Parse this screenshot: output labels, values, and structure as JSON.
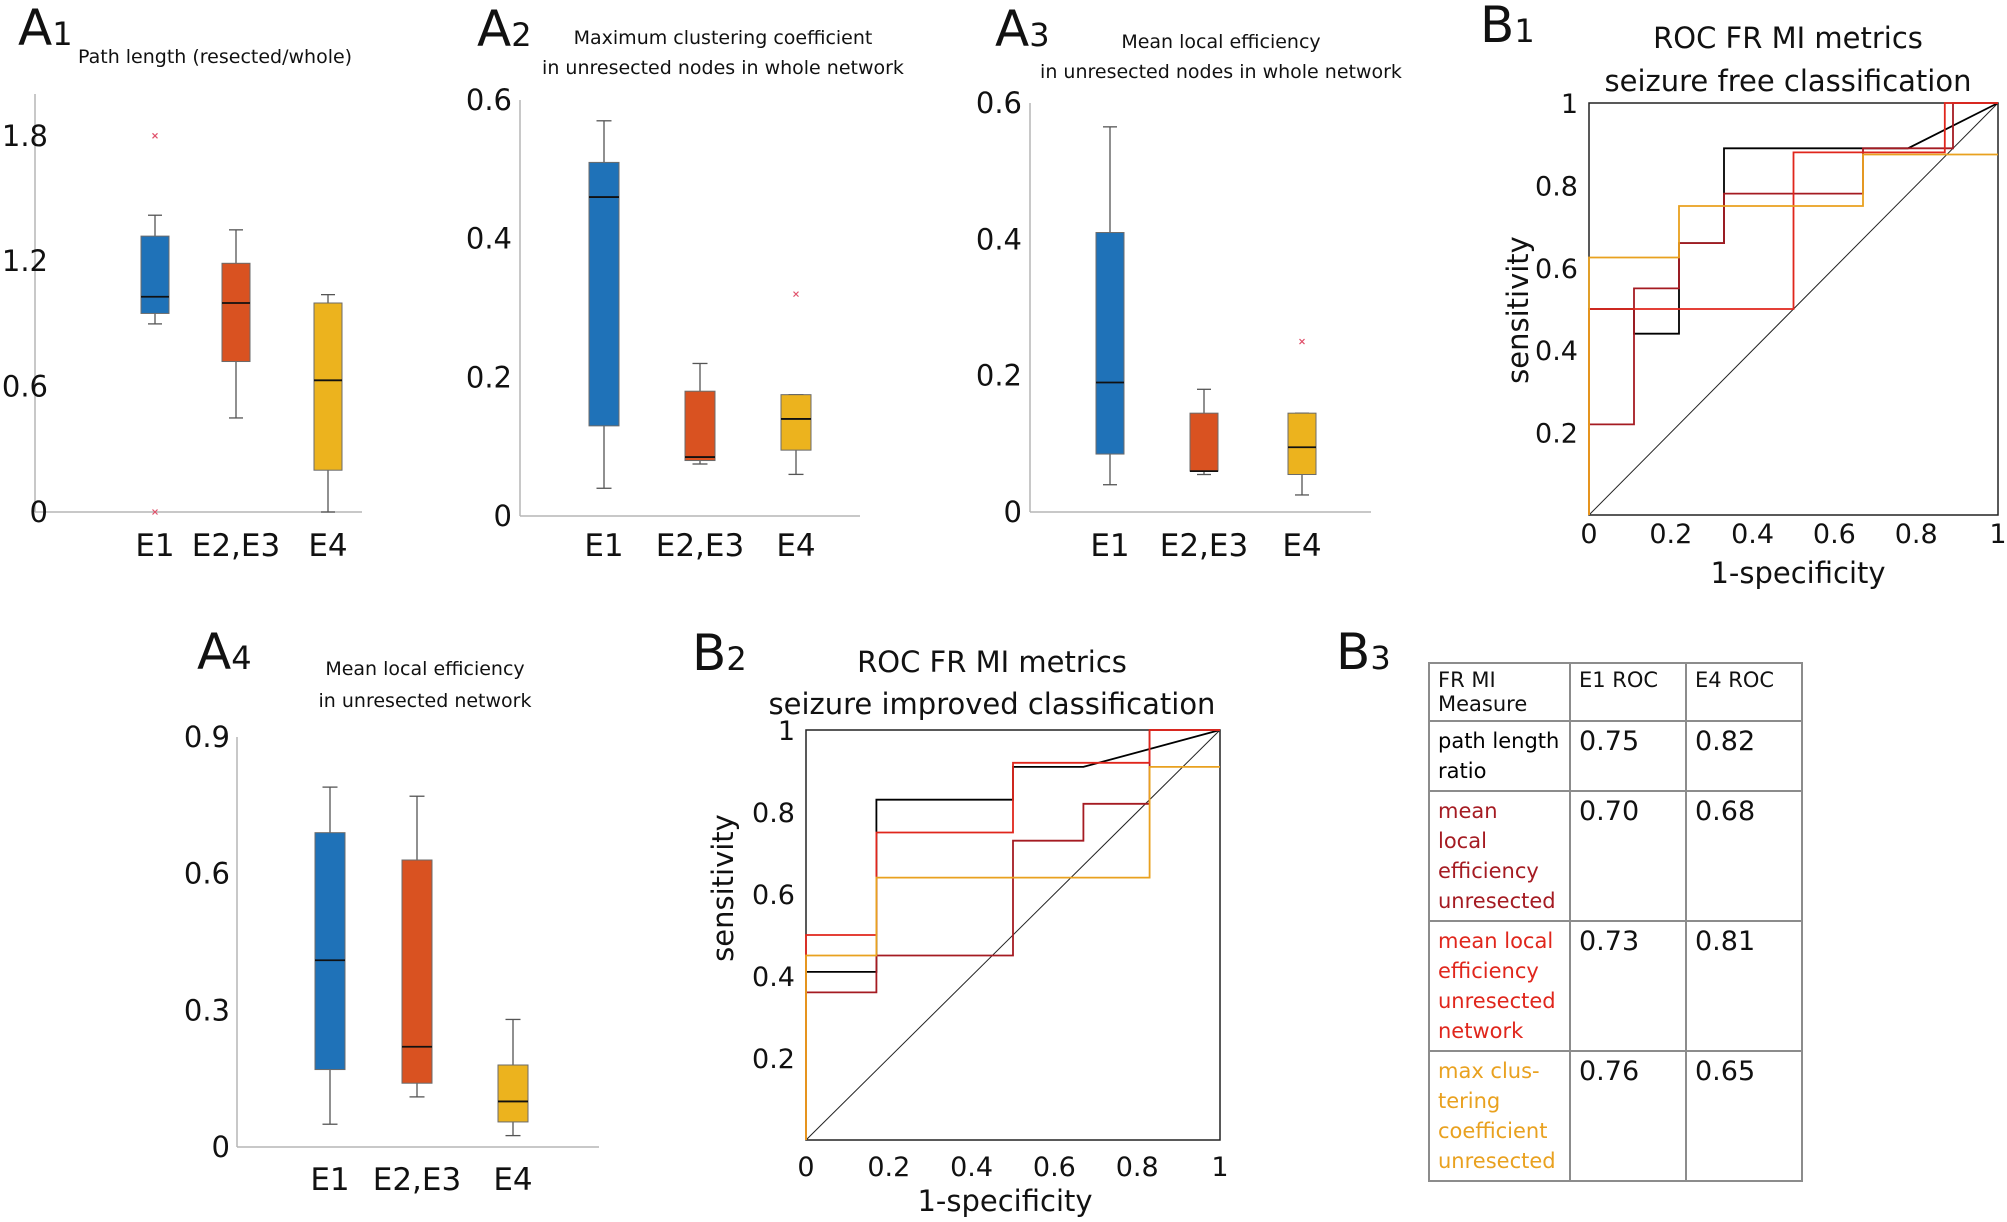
{
  "colors": {
    "E1": "#1f72b8",
    "E2E3": "#d95221",
    "E4": "#ecb31e",
    "outlier": "#e0506a",
    "roc_black": "#000000",
    "roc_darkred": "#a51b22",
    "roc_red": "#e0261c",
    "roc_orange": "#e9a11f"
  },
  "chart_data": [
    {
      "id": "A1",
      "panel_letter": "A",
      "panel_sub": "1",
      "type": "box",
      "title_lines": [
        "Path length (resected/whole)"
      ],
      "categories": [
        "E1",
        "E2,E3",
        "E4"
      ],
      "ylim": [
        0,
        2.0
      ],
      "yticks": [
        0,
        0.6,
        1.2,
        1.8
      ],
      "ytick_labels": [
        "0",
        "0.6",
        "1.2",
        "1.8"
      ],
      "boxes": [
        {
          "whislo": 0.9,
          "q1": 0.95,
          "med": 1.03,
          "q3": 1.32,
          "whishi": 1.42,
          "outliers": [
            1.8,
            0.0
          ],
          "color": "E1"
        },
        {
          "whislo": 0.45,
          "q1": 0.72,
          "med": 1.0,
          "q3": 1.19,
          "whishi": 1.35,
          "outliers": [],
          "color": "E2E3"
        },
        {
          "whislo": 0.0,
          "q1": 0.2,
          "med": 0.63,
          "q3": 1.0,
          "whishi": 1.04,
          "outliers": [],
          "color": "E4"
        }
      ]
    },
    {
      "id": "A2",
      "panel_letter": "A",
      "panel_sub": "2",
      "type": "box",
      "title_lines": [
        "Maximum clustering coefficient",
        "in unresected nodes in whole network"
      ],
      "categories": [
        "E1",
        "E2,E3",
        "E4"
      ],
      "ylim": [
        0,
        0.6
      ],
      "yticks": [
        0,
        0.2,
        0.4,
        0.6
      ],
      "ytick_labels": [
        "0",
        "0.2",
        "0.4",
        "0.6"
      ],
      "boxes": [
        {
          "whislo": 0.04,
          "q1": 0.13,
          "med": 0.46,
          "q3": 0.51,
          "whishi": 0.57,
          "outliers": [],
          "color": "E1"
        },
        {
          "whislo": 0.075,
          "q1": 0.08,
          "med": 0.085,
          "q3": 0.18,
          "whishi": 0.22,
          "outliers": [],
          "color": "E2E3"
        },
        {
          "whislo": 0.06,
          "q1": 0.095,
          "med": 0.14,
          "q3": 0.175,
          "whishi": 0.175,
          "outliers": [
            0.32
          ],
          "color": "E4"
        }
      ]
    },
    {
      "id": "A3",
      "panel_letter": "A",
      "panel_sub": "3",
      "type": "box",
      "title_lines": [
        "Mean local efficiency",
        "in unresected nodes in whole network"
      ],
      "categories": [
        "E1",
        "E2,E3",
        "E4"
      ],
      "ylim": [
        0,
        0.6
      ],
      "yticks": [
        0,
        0.2,
        0.4,
        0.6
      ],
      "ytick_labels": [
        "0",
        "0.2",
        "0.4",
        "0.6"
      ],
      "boxes": [
        {
          "whislo": 0.04,
          "q1": 0.085,
          "med": 0.19,
          "q3": 0.41,
          "whishi": 0.565,
          "outliers": [],
          "color": "E1"
        },
        {
          "whislo": 0.055,
          "q1": 0.06,
          "med": 0.06,
          "q3": 0.145,
          "whishi": 0.18,
          "outliers": [],
          "color": "E2E3"
        },
        {
          "whislo": 0.025,
          "q1": 0.055,
          "med": 0.095,
          "q3": 0.145,
          "whishi": 0.145,
          "outliers": [
            0.25
          ],
          "color": "E4"
        }
      ]
    },
    {
      "id": "A4",
      "panel_letter": "A",
      "panel_sub": "4",
      "type": "box",
      "title_lines": [
        "Mean local efficiency",
        "in unresected network"
      ],
      "categories": [
        "E1",
        "E2,E3",
        "E4"
      ],
      "ylim": [
        0,
        0.9
      ],
      "yticks": [
        0,
        0.3,
        0.6,
        0.9
      ],
      "ytick_labels": [
        "0",
        "0.3",
        "0.6",
        "0.9"
      ],
      "boxes": [
        {
          "whislo": 0.05,
          "q1": 0.17,
          "med": 0.41,
          "q3": 0.69,
          "whishi": 0.79,
          "outliers": [],
          "color": "E1"
        },
        {
          "whislo": 0.11,
          "q1": 0.14,
          "med": 0.22,
          "q3": 0.63,
          "whishi": 0.77,
          "outliers": [],
          "color": "E2E3"
        },
        {
          "whislo": 0.025,
          "q1": 0.055,
          "med": 0.1,
          "q3": 0.18,
          "whishi": 0.28,
          "outliers": [],
          "color": "E4"
        }
      ]
    },
    {
      "id": "B1",
      "panel_letter": "B",
      "panel_sub": "1",
      "type": "roc",
      "title_lines": [
        "ROC FR MI metrics",
        "seizure free classification"
      ],
      "xlabel": "1-specificity",
      "ylabel": "sensitivity",
      "xlim": [
        0,
        1
      ],
      "ylim": [
        0,
        1
      ],
      "xticks": [
        0,
        0.2,
        0.4,
        0.6,
        0.8,
        1
      ],
      "xtick_labels": [
        "0",
        "0.2",
        "0.4",
        "0.6",
        "0.8",
        "1"
      ],
      "yticks": [
        0.2,
        0.4,
        0.6,
        0.8,
        1
      ],
      "ytick_labels": [
        "0.2",
        "0.4",
        "0.6",
        "0.8",
        "1"
      ],
      "series": [
        {
          "name": "path length ratio",
          "color": "roc_black",
          "points": [
            [
              0,
              0
            ],
            [
              0,
              0.5
            ],
            [
              0.11,
              0.5
            ],
            [
              0.11,
              0.44
            ],
            [
              0.22,
              0.44
            ],
            [
              0.22,
              0.66
            ],
            [
              0.33,
              0.66
            ],
            [
              0.33,
              0.89
            ],
            [
              0.78,
              0.89
            ],
            [
              1,
              1
            ]
          ]
        },
        {
          "name": "mean local efficiency unresected",
          "color": "roc_darkred",
          "points": [
            [
              0,
              0
            ],
            [
              0,
              0.22
            ],
            [
              0.11,
              0.22
            ],
            [
              0.11,
              0.55
            ],
            [
              0.22,
              0.55
            ],
            [
              0.22,
              0.66
            ],
            [
              0.33,
              0.66
            ],
            [
              0.33,
              0.78
            ],
            [
              0.67,
              0.78
            ],
            [
              0.67,
              0.89
            ],
            [
              0.89,
              0.89
            ],
            [
              0.89,
              1
            ],
            [
              1,
              1
            ]
          ]
        },
        {
          "name": "mean local efficiency unresected network",
          "color": "roc_red",
          "points": [
            [
              0,
              0
            ],
            [
              0,
              0.5
            ],
            [
              0.5,
              0.5
            ],
            [
              0.5,
              0.88
            ],
            [
              0.87,
              0.88
            ],
            [
              0.87,
              1
            ],
            [
              1,
              1
            ]
          ]
        },
        {
          "name": "max clustering coefficient unresected",
          "color": "roc_orange",
          "points": [
            [
              0,
              0
            ],
            [
              0,
              0.625
            ],
            [
              0.22,
              0.625
            ],
            [
              0.22,
              0.75
            ],
            [
              0.67,
              0.75
            ],
            [
              0.67,
              0.875
            ],
            [
              1,
              0.875
            ]
          ]
        }
      ]
    },
    {
      "id": "B2",
      "panel_letter": "B",
      "panel_sub": "2",
      "type": "roc",
      "title_lines": [
        "ROC FR MI metrics",
        "seizure improved classification"
      ],
      "xlabel": "1-specificity",
      "ylabel": "sensitivity",
      "xlim": [
        0,
        1
      ],
      "ylim": [
        0,
        1
      ],
      "xticks": [
        0,
        0.2,
        0.4,
        0.6,
        0.8,
        1
      ],
      "xtick_labels": [
        "0",
        "0.2",
        "0.4",
        "0.6",
        "0.8",
        "1"
      ],
      "yticks": [
        0.2,
        0.4,
        0.6,
        0.8,
        1
      ],
      "ytick_labels": [
        "0.2",
        "0.4",
        "0.6",
        "0.8",
        "1"
      ],
      "series": [
        {
          "name": "path length ratio",
          "color": "roc_black",
          "points": [
            [
              0,
              0
            ],
            [
              0,
              0.41
            ],
            [
              0.17,
              0.41
            ],
            [
              0.17,
              0.83
            ],
            [
              0.5,
              0.83
            ],
            [
              0.5,
              0.91
            ],
            [
              0.67,
              0.91
            ],
            [
              1,
              1
            ]
          ]
        },
        {
          "name": "mean local efficiency unresected",
          "color": "roc_darkred",
          "points": [
            [
              0,
              0
            ],
            [
              0,
              0.36
            ],
            [
              0.17,
              0.36
            ],
            [
              0.17,
              0.45
            ],
            [
              0.5,
              0.45
            ],
            [
              0.5,
              0.73
            ],
            [
              0.67,
              0.73
            ],
            [
              0.67,
              0.82
            ],
            [
              0.83,
              0.82
            ],
            [
              0.83,
              1
            ],
            [
              1,
              1
            ]
          ]
        },
        {
          "name": "mean local efficiency unresected network",
          "color": "roc_red",
          "points": [
            [
              0,
              0
            ],
            [
              0,
              0.5
            ],
            [
              0.17,
              0.5
            ],
            [
              0.17,
              0.75
            ],
            [
              0.5,
              0.75
            ],
            [
              0.5,
              0.92
            ],
            [
              0.83,
              0.92
            ],
            [
              0.83,
              1
            ],
            [
              1,
              1
            ]
          ]
        },
        {
          "name": "max clustering coefficient unresected",
          "color": "roc_orange",
          "points": [
            [
              0,
              0
            ],
            [
              0,
              0.45
            ],
            [
              0.17,
              0.45
            ],
            [
              0.17,
              0.64
            ],
            [
              0.83,
              0.64
            ],
            [
              0.83,
              0.91
            ],
            [
              1,
              0.91
            ]
          ]
        }
      ]
    },
    {
      "id": "B3",
      "panel_letter": "B",
      "panel_sub": "3",
      "type": "table",
      "headers": [
        "FR MI Measure",
        "E1 ROC",
        "E4 ROC"
      ],
      "header_lines": [
        "FR MI",
        "Measure"
      ],
      "rows": [
        {
          "measure_lines": [
            "path length",
            "ratio"
          ],
          "color": "roc_black",
          "e1": "0.75",
          "e4": "0.82"
        },
        {
          "measure_lines": [
            "mean",
            "local",
            "efficiency",
            "unresected"
          ],
          "color": "roc_darkred",
          "e1": "0.70",
          "e4": "0.68"
        },
        {
          "measure_lines": [
            "mean local",
            "efficiency",
            "unresected",
            "network"
          ],
          "color": "roc_red",
          "e1": "0.73",
          "e4": "0.81"
        },
        {
          "measure_lines": [
            "max clus-",
            "tering",
            "coefficient",
            "unresected"
          ],
          "color": "roc_orange",
          "e1": "0.76",
          "e4": "0.65"
        }
      ]
    }
  ]
}
